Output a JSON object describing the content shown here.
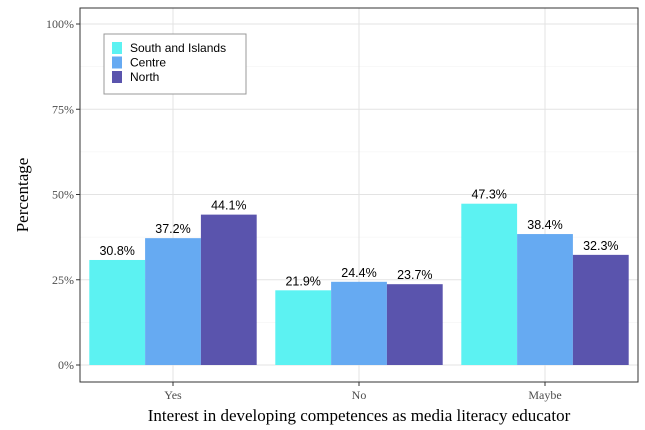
{
  "chart_data": {
    "type": "bar",
    "categories": [
      "Yes",
      "No",
      "Maybe"
    ],
    "series": [
      {
        "name": "South and Islands",
        "color": "#5cf2f2",
        "values": [
          30.8,
          21.9,
          47.3
        ]
      },
      {
        "name": "Centre",
        "color": "#66aaf2",
        "values": [
          37.2,
          24.4,
          38.4
        ]
      },
      {
        "name": "North",
        "color": "#5a54ad",
        "values": [
          44.1,
          23.7,
          32.3
        ]
      }
    ],
    "value_labels": [
      [
        "30.8%",
        "21.9%",
        "47.3%"
      ],
      [
        "37.2%",
        "24.4%",
        "38.4%"
      ],
      [
        "44.1%",
        "23.7%",
        "32.3%"
      ]
    ],
    "xlabel": "Interest in developing competences as media literacy educator",
    "ylabel": "Percentage",
    "ylim": [
      0,
      100
    ],
    "yticks": [
      0,
      25,
      50,
      75,
      100
    ],
    "ytick_labels": [
      "0%",
      "25%",
      "50%",
      "75%",
      "100%"
    ],
    "grid": true,
    "legend_position": "top-left"
  }
}
